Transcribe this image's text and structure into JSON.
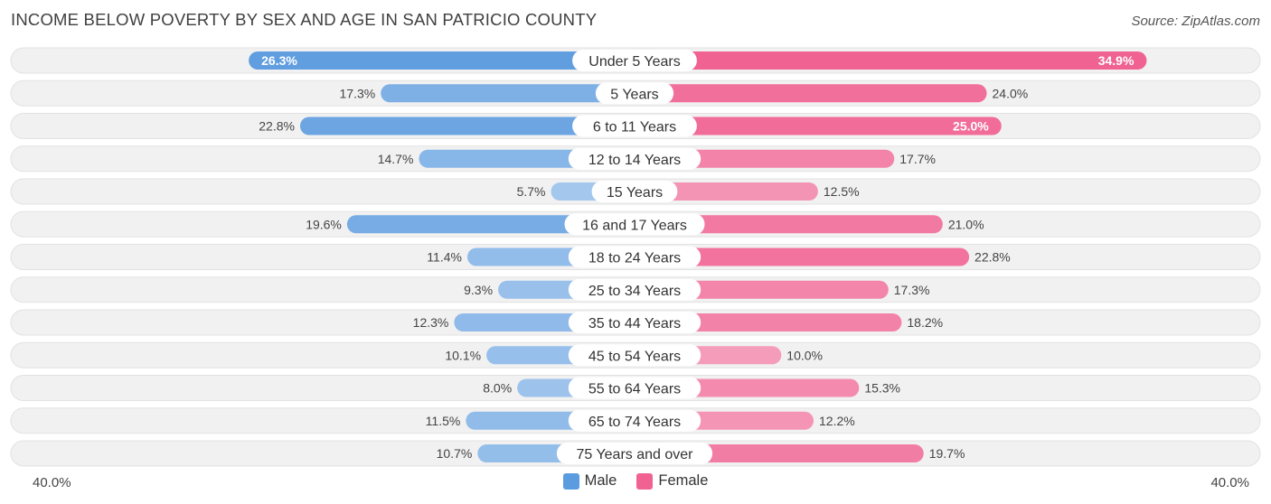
{
  "title": "INCOME BELOW POVERTY BY SEX AND AGE IN SAN PATRICIO COUNTY",
  "source": "Source: ZipAtlas.com",
  "colors": {
    "male_strong": "#5b9bdf",
    "male_light": "#b7d3f1",
    "female_strong": "#f06292",
    "female_light": "#f8bcd0",
    "row_bg": "#f1f1f1",
    "row_border": "#e2e2e2"
  },
  "legend": {
    "male": "Male",
    "female": "Female"
  },
  "axis": {
    "left_label": "40.0%",
    "right_label": "40.0%"
  },
  "chart_data": {
    "type": "bar",
    "orientation": "horizontal-diverging",
    "title": "INCOME BELOW POVERTY BY SEX AND AGE IN SAN PATRICIO COUNTY",
    "categories": [
      "Under 5 Years",
      "5 Years",
      "6 to 11 Years",
      "12 to 14 Years",
      "15 Years",
      "16 and 17 Years",
      "18 to 24 Years",
      "25 to 34 Years",
      "35 to 44 Years",
      "45 to 54 Years",
      "55 to 64 Years",
      "65 to 74 Years",
      "75 Years and over"
    ],
    "series": [
      {
        "name": "Male",
        "values": [
          26.3,
          17.3,
          22.8,
          14.7,
          5.7,
          19.6,
          11.4,
          9.3,
          12.3,
          10.1,
          8.0,
          11.5,
          10.7
        ],
        "labels": [
          "26.3%",
          "17.3%",
          "22.8%",
          "14.7%",
          "5.7%",
          "19.6%",
          "11.4%",
          "9.3%",
          "12.3%",
          "10.1%",
          "8.0%",
          "11.5%",
          "10.7%"
        ]
      },
      {
        "name": "Female",
        "values": [
          34.9,
          24.0,
          25.0,
          17.7,
          12.5,
          21.0,
          22.8,
          17.3,
          18.2,
          10.0,
          15.3,
          12.2,
          19.7
        ],
        "labels": [
          "34.9%",
          "24.0%",
          "25.0%",
          "17.7%",
          "12.5%",
          "21.0%",
          "22.8%",
          "17.3%",
          "18.2%",
          "10.0%",
          "15.3%",
          "12.2%",
          "19.7%"
        ]
      }
    ],
    "xlim": [
      -40,
      40
    ],
    "xlabel": "",
    "ylabel": "",
    "legend_position": "bottom-center"
  }
}
